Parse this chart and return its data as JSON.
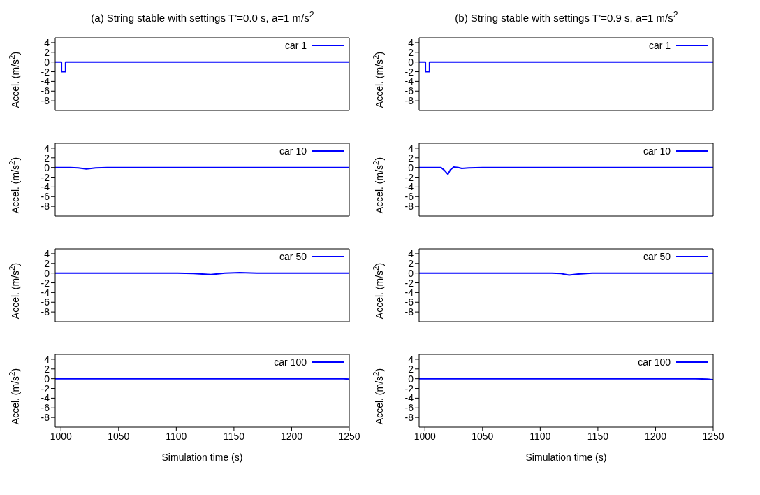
{
  "chart_data": [
    {
      "type": "line",
      "title": "(a) String stable with settings T’=0.0 s, a=1 m/s$^{2}$",
      "ylabel": "Accel. (m/s$^{2}$)",
      "x": [
        995,
        1000.5,
        1000.5,
        1004,
        1004,
        1250
      ],
      "series": [
        {
          "name": "car 1",
          "color": "#0000ff",
          "values": [
            0,
            0,
            -2,
            -2,
            0,
            0
          ]
        }
      ],
      "xlim": [
        995,
        1250
      ],
      "xticks": [
        1000,
        1050,
        1100,
        1150,
        1200,
        1250
      ],
      "ylim": [
        -10,
        5
      ],
      "yticks": [
        -8,
        -6,
        -4,
        -2,
        0,
        2,
        4
      ],
      "legend": "top right",
      "tick_labels": "y",
      "grid": false
    },
    {
      "type": "line",
      "ylabel": "Accel. (m/s$^{2}$)",
      "x": [
        995,
        1008,
        1015,
        1022,
        1030,
        1040,
        1250
      ],
      "series": [
        {
          "name": "car 10",
          "color": "#0000ff",
          "values": [
            0,
            0,
            -0.1,
            -0.3,
            -0.1,
            0,
            0
          ]
        }
      ],
      "xlim": [
        995,
        1250
      ],
      "xticks": [
        1000,
        1050,
        1100,
        1150,
        1200,
        1250
      ],
      "ylim": [
        -10,
        5
      ],
      "yticks": [
        -8,
        -6,
        -4,
        -2,
        0,
        2,
        4
      ],
      "legend": "top right",
      "tick_labels": "y",
      "grid": false
    },
    {
      "type": "line",
      "ylabel": "Accel. (m/s$^{2}$)",
      "x": [
        995,
        1100,
        1115,
        1130,
        1142,
        1155,
        1170,
        1250
      ],
      "series": [
        {
          "name": "car 50",
          "color": "#0000ff",
          "values": [
            0,
            0,
            -0.1,
            -0.3,
            0,
            0.1,
            0,
            0
          ]
        }
      ],
      "xlim": [
        995,
        1250
      ],
      "xticks": [
        1000,
        1050,
        1100,
        1150,
        1200,
        1250
      ],
      "ylim": [
        -10,
        5
      ],
      "yticks": [
        -8,
        -6,
        -4,
        -2,
        0,
        2,
        4
      ],
      "legend": "top right",
      "tick_labels": "y",
      "grid": false
    },
    {
      "type": "line",
      "xlabel": "Simulation time (s)",
      "ylabel": "Accel. (m/s$^{2}$)",
      "x": [
        995,
        1235,
        1245,
        1250
      ],
      "series": [
        {
          "name": "car 100",
          "color": "#0000ff",
          "values": [
            0,
            0,
            0,
            -0.1
          ]
        }
      ],
      "xlim": [
        995,
        1250
      ],
      "xticks": [
        1000,
        1050,
        1100,
        1150,
        1200,
        1250
      ],
      "ylim": [
        -10,
        5
      ],
      "yticks": [
        -8,
        -6,
        -4,
        -2,
        0,
        2,
        4
      ],
      "legend": "top right",
      "grid": false
    },
    {
      "type": "line",
      "title": "(b) String stable with settings T’=0.9 s, a=1 m/s$^{2}$",
      "ylabel": "Accel. (m/s$^{2}$)",
      "x": [
        995,
        1000.5,
        1000.5,
        1004,
        1004,
        1250
      ],
      "series": [
        {
          "name": "car 1",
          "color": "#0000ff",
          "values": [
            0,
            0,
            -2,
            -2,
            0,
            0
          ]
        }
      ],
      "xlim": [
        995,
        1250
      ],
      "xticks": [
        1000,
        1050,
        1100,
        1150,
        1200,
        1250
      ],
      "ylim": [
        -10,
        5
      ],
      "yticks": [
        -8,
        -6,
        -4,
        -2,
        0,
        2,
        4
      ],
      "legend": "top right",
      "tick_labels": "y",
      "grid": false
    },
    {
      "type": "line",
      "ylabel": "Accel. (m/s$^{2}$)",
      "x": [
        995,
        1014,
        1017,
        1020,
        1022,
        1025,
        1029,
        1032,
        1038,
        1050,
        1250
      ],
      "series": [
        {
          "name": "car 10",
          "color": "#0000ff",
          "values": [
            0,
            0,
            -0.6,
            -1.4,
            -0.5,
            0.1,
            0,
            -0.2,
            -0.1,
            0,
            0
          ]
        }
      ],
      "xlim": [
        995,
        1250
      ],
      "xticks": [
        1000,
        1050,
        1100,
        1150,
        1200,
        1250
      ],
      "ylim": [
        -10,
        5
      ],
      "yticks": [
        -8,
        -6,
        -4,
        -2,
        0,
        2,
        4
      ],
      "legend": "top right",
      "tick_labels": "y",
      "grid": false
    },
    {
      "type": "line",
      "ylabel": "Accel. (m/s$^{2}$)",
      "x": [
        995,
        1110,
        1118,
        1125,
        1133,
        1145,
        1250
      ],
      "series": [
        {
          "name": "car 50",
          "color": "#0000ff",
          "values": [
            0,
            0,
            -0.1,
            -0.4,
            -0.2,
            0,
            0
          ]
        }
      ],
      "xlim": [
        995,
        1250
      ],
      "xticks": [
        1000,
        1050,
        1100,
        1150,
        1200,
        1250
      ],
      "ylim": [
        -10,
        5
      ],
      "yticks": [
        -8,
        -6,
        -4,
        -2,
        0,
        2,
        4
      ],
      "legend": "top right",
      "tick_labels": "y",
      "grid": false
    },
    {
      "type": "line",
      "xlabel": "Simulation time (s)",
      "ylabel": "Accel. (m/s$^{2}$)",
      "x": [
        995,
        1235,
        1245,
        1250
      ],
      "series": [
        {
          "name": "car 100",
          "color": "#0000ff",
          "values": [
            0,
            0,
            -0.1,
            -0.2
          ]
        }
      ],
      "xlim": [
        995,
        1250
      ],
      "xticks": [
        1000,
        1050,
        1100,
        1150,
        1200,
        1250
      ],
      "ylim": [
        -10,
        5
      ],
      "yticks": [
        -8,
        -6,
        -4,
        -2,
        0,
        2,
        4
      ],
      "legend": "top right",
      "grid": false
    }
  ]
}
